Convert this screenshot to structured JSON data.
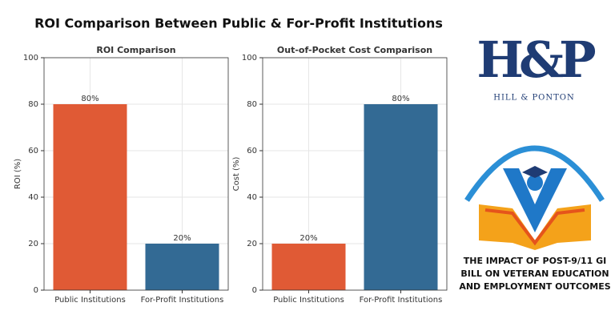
{
  "title": "ROI Comparison Between Public & For-Profit Institutions",
  "chart_data": [
    {
      "type": "bar",
      "title": "ROI Comparison",
      "y_label": "ROI (%)",
      "categories": [
        "Public Institutions",
        "For-Profit Institutions"
      ],
      "values": [
        80,
        20
      ],
      "value_labels": [
        "80%",
        "20%"
      ],
      "colors": [
        "#e05a35",
        "#336a94"
      ],
      "ylim": [
        0,
        100
      ],
      "yticks": [
        0,
        20,
        40,
        60,
        80,
        100
      ],
      "grid": true
    },
    {
      "type": "bar",
      "title": "Out-of-Pocket Cost Comparison",
      "y_label": "Cost (%)",
      "categories": [
        "Public Institutions",
        "For-Profit Institutions"
      ],
      "values": [
        20,
        80
      ],
      "value_labels": [
        "20%",
        "80%"
      ],
      "colors": [
        "#e05a35",
        "#336a94"
      ],
      "ylim": [
        0,
        100
      ],
      "yticks": [
        0,
        20,
        40,
        60,
        80,
        100
      ],
      "grid": true
    }
  ],
  "logo": {
    "mark": "H&P",
    "name": "HILL & PONTON"
  },
  "book": {
    "lines": [
      "THE IMPACT OF POST-9/11 GI",
      "BILL ON VETERAN EDUCATION",
      "AND EMPLOYMENT OUTCOMES"
    ]
  }
}
